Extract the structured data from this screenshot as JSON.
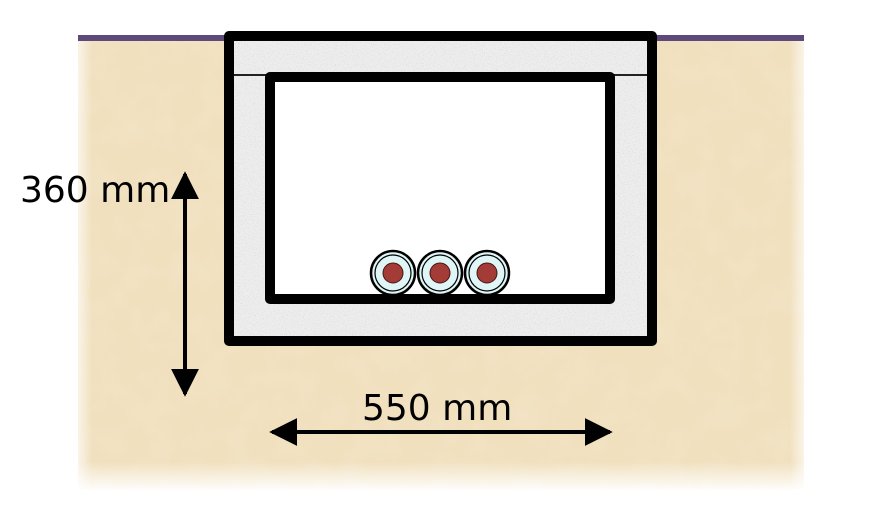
{
  "diagram": {
    "depth_label": "360 mm",
    "width_label": "550 mm",
    "cable_count": 3
  },
  "colors": {
    "soil": "#f1e0be",
    "soil_dark": "#e3cb9e",
    "ground_line": "#5d4a7b",
    "concrete": "#ededed",
    "wall": "#000000",
    "cable_sheath": "#dff5f6",
    "cable_core": "#a33b36"
  }
}
